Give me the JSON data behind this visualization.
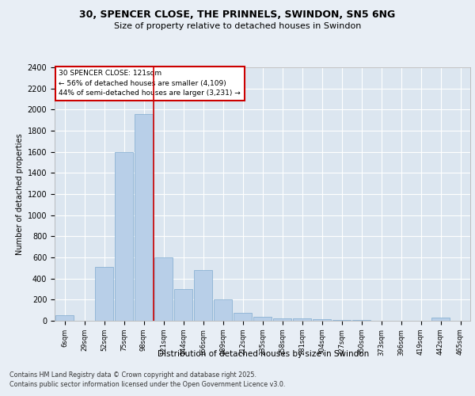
{
  "title1": "30, SPENCER CLOSE, THE PRINNELS, SWINDON, SN5 6NG",
  "title2": "Size of property relative to detached houses in Swindon",
  "xlabel": "Distribution of detached houses by size in Swindon",
  "ylabel": "Number of detached properties",
  "categories": [
    "6sqm",
    "29sqm",
    "52sqm",
    "75sqm",
    "98sqm",
    "121sqm",
    "144sqm",
    "166sqm",
    "189sqm",
    "212sqm",
    "235sqm",
    "258sqm",
    "281sqm",
    "304sqm",
    "327sqm",
    "350sqm",
    "373sqm",
    "396sqm",
    "419sqm",
    "442sqm",
    "465sqm"
  ],
  "values": [
    50,
    0,
    510,
    1600,
    1960,
    600,
    300,
    480,
    200,
    75,
    35,
    25,
    20,
    15,
    10,
    8,
    0,
    0,
    0,
    28,
    0
  ],
  "bar_color": "#b8cfe8",
  "bar_edge_color": "#7faacf",
  "red_line_x": 4.5,
  "annotation_text": "30 SPENCER CLOSE: 121sqm\n← 56% of detached houses are smaller (4,109)\n44% of semi-detached houses are larger (3,231) →",
  "annotation_box_color": "#ffffff",
  "annotation_box_edge": "#cc0000",
  "red_line_color": "#cc0000",
  "background_color": "#e8eef5",
  "plot_bg_color": "#dce6f0",
  "grid_color": "#ffffff",
  "footer1": "Contains HM Land Registry data © Crown copyright and database right 2025.",
  "footer2": "Contains public sector information licensed under the Open Government Licence v3.0.",
  "ylim": [
    0,
    2400
  ],
  "yticks": [
    0,
    200,
    400,
    600,
    800,
    1000,
    1200,
    1400,
    1600,
    1800,
    2000,
    2200,
    2400
  ]
}
